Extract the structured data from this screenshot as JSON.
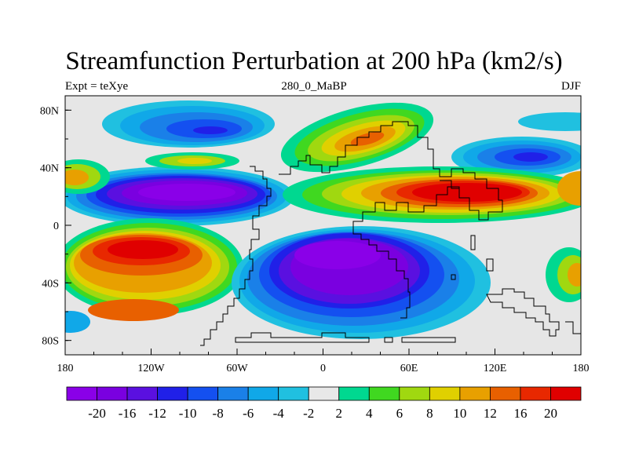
{
  "header": {
    "title": "Streamfunction Perturbation at 200 hPa (km2/s)",
    "left_label": "Expt = teXye",
    "center_label": "280_0_MaBP",
    "right_label": "DJF"
  },
  "axes": {
    "x_ticks": [
      "180",
      "120W",
      "60W",
      "0",
      "60E",
      "120E",
      "180"
    ],
    "y_ticks": [
      "80N",
      "40N",
      "0",
      "40S",
      "80S"
    ]
  },
  "legend": {
    "levels": [
      "-20",
      "-16",
      "-12",
      "-10",
      "-8",
      "-6",
      "-4",
      "-2",
      "2",
      "4",
      "6",
      "8",
      "10",
      "12",
      "16",
      "20"
    ],
    "colors": [
      "#8a00e8",
      "#7a00e0",
      "#5a10e0",
      "#2020e8",
      "#1450f0",
      "#1a80e8",
      "#10a8e8",
      "#20c0e0",
      "#e8e8e8",
      "#00d890",
      "#40d820",
      "#a0d810",
      "#e0d000",
      "#e8a000",
      "#e86000",
      "#e82800",
      "#e00000"
    ]
  },
  "map": {
    "background": "#e6e6e6",
    "projection": "cylindrical-equidistant",
    "coastline_color": "#000000"
  }
}
